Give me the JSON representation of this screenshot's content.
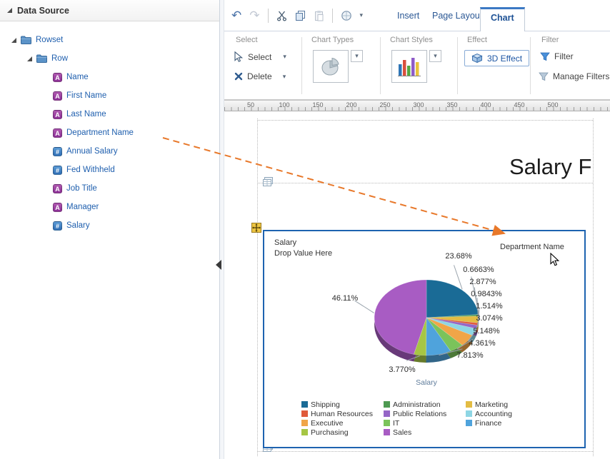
{
  "sidebar": {
    "title": "Data Source",
    "rowset": "Rowset",
    "row": "Row",
    "fields": [
      {
        "label": "Name",
        "kind": "text"
      },
      {
        "label": "First Name",
        "kind": "text"
      },
      {
        "label": "Last Name",
        "kind": "text"
      },
      {
        "label": "Department Name",
        "kind": "text"
      },
      {
        "label": "Annual Salary",
        "kind": "number"
      },
      {
        "label": "Fed Withheld",
        "kind": "number"
      },
      {
        "label": "Job Title",
        "kind": "text"
      },
      {
        "label": "Manager",
        "kind": "text"
      },
      {
        "label": "Salary",
        "kind": "number"
      }
    ]
  },
  "icons": {
    "undo": "↶",
    "redo": "↷",
    "caret_down": "▾"
  },
  "tabs": [
    {
      "label": "Insert",
      "active": false
    },
    {
      "label": "Page Layout",
      "active": false
    },
    {
      "label": "Chart",
      "active": true
    }
  ],
  "ribbon": {
    "select_group": {
      "label": "Select",
      "select": "Select",
      "delete": "Delete"
    },
    "chart_types_label": "Chart Types",
    "chart_styles_label": "Chart Styles",
    "effect_group": {
      "label": "Effect",
      "button": "3D Effect"
    },
    "filter_group": {
      "label": "Filter",
      "filter": "Filter",
      "manage": "Manage Filters"
    }
  },
  "ruler_ticks": [
    "50",
    "100",
    "150",
    "200",
    "250",
    "300",
    "350",
    "400",
    "450",
    "500"
  ],
  "canvas": {
    "title": "Salary F",
    "chart": {
      "series_label": "Salary",
      "drop_hint": "Drop Value Here",
      "drop_field": "Department Name",
      "footer_label": "Salary"
    }
  },
  "colors": {
    "selection_border": "#1E63B0",
    "drag_arrow": "#E8782A",
    "tab_accent": "#3B79C4"
  },
  "chart_data": {
    "type": "pie",
    "title": "Salary",
    "value_field": "Salary",
    "label_field": "Department Name",
    "effect": "3D",
    "legend_position": "bottom",
    "slices": [
      {
        "label": "Shipping",
        "value": 23.68,
        "pct_label": "23.68%",
        "color": "#1A6B96"
      },
      {
        "label": "Administration",
        "value": 0.6663,
        "pct_label": "0.6663%",
        "color": "#4E9A51"
      },
      {
        "label": "Marketing",
        "value": 2.877,
        "pct_label": "2.877%",
        "color": "#E3BC43"
      },
      {
        "label": "Human Resources",
        "value": 0.9843,
        "pct_label": "0.9843%",
        "color": "#E05A3A"
      },
      {
        "label": "Public Relations",
        "value": 1.514,
        "pct_label": "1.514%",
        "color": "#9566C6"
      },
      {
        "label": "Accounting",
        "value": 3.074,
        "pct_label": "3.074%",
        "color": "#8ED6E4"
      },
      {
        "label": "Executive",
        "value": 5.148,
        "pct_label": "5.148%",
        "color": "#F0A548"
      },
      {
        "label": "IT",
        "value": 4.361,
        "pct_label": "4.361%",
        "color": "#7BC35B"
      },
      {
        "label": "Finance",
        "value": 7.813,
        "pct_label": "7.813%",
        "color": "#4FA3DC"
      },
      {
        "label": "Purchasing",
        "value": 3.77,
        "pct_label": "3.770%",
        "color": "#A6C644"
      },
      {
        "label": "Sales",
        "value": 46.11,
        "pct_label": "46.11%",
        "color": "#A85CC3"
      }
    ],
    "legend": [
      "Shipping",
      "Human Resources",
      "Executive",
      "Purchasing",
      "Administration",
      "Public Relations",
      "IT",
      "Sales",
      "Marketing",
      "Accounting",
      "Finance"
    ]
  }
}
